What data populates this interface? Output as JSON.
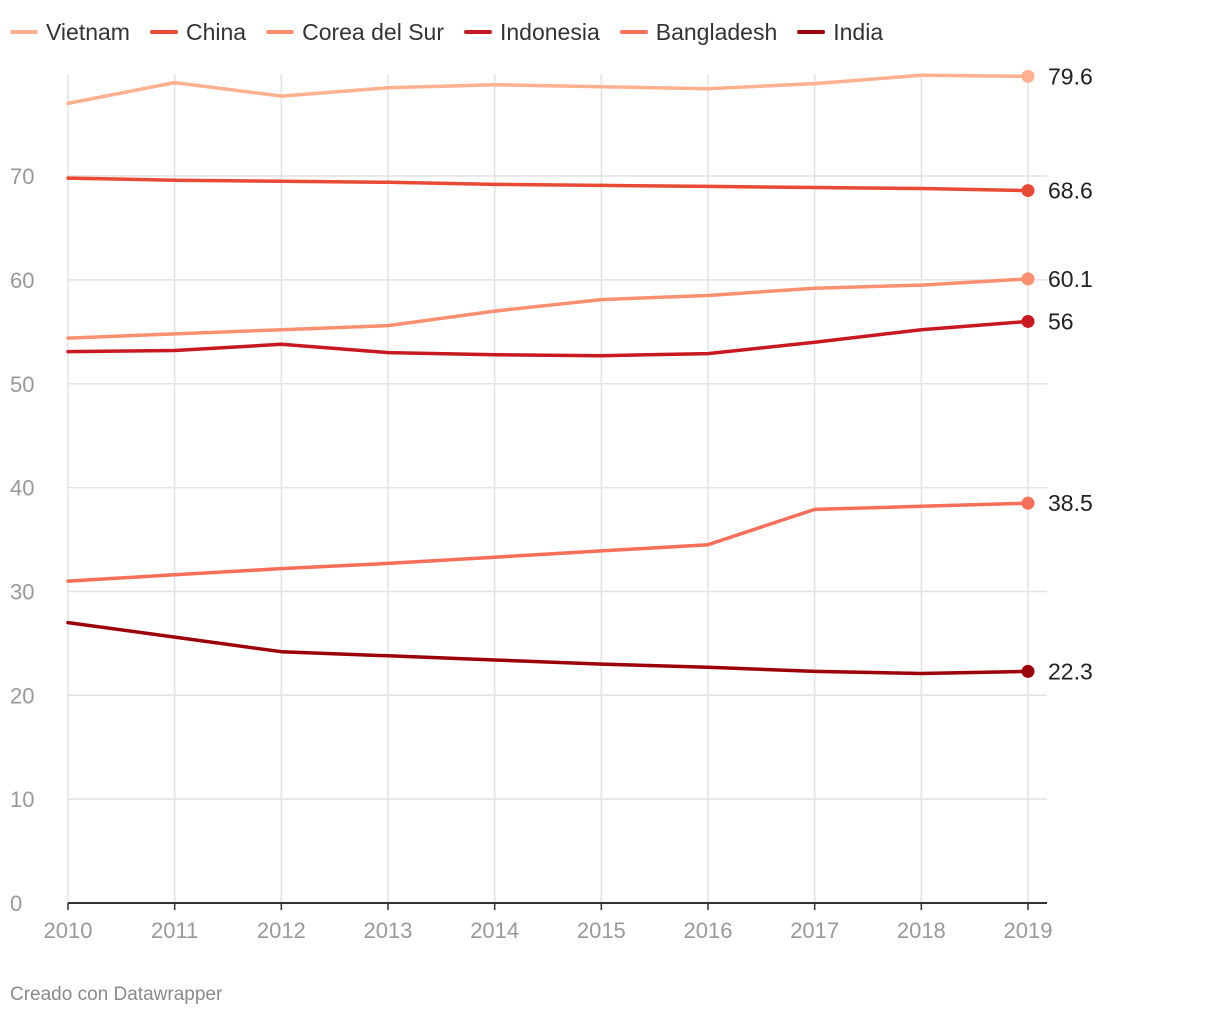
{
  "legend": [
    {
      "label": "Vietnam",
      "color": "#ffb08f"
    },
    {
      "label": "China",
      "color": "#e84a35"
    },
    {
      "label": "Corea del Sur",
      "color": "#fb9071"
    },
    {
      "label": "Indonesia",
      "color": "#c7191f"
    },
    {
      "label": "Bangladesh",
      "color": "#f76e59"
    },
    {
      "label": "India",
      "color": "#9c0008"
    }
  ],
  "footer": "Creado con Datawrapper",
  "chart_data": {
    "type": "line",
    "x": [
      "2010",
      "2011",
      "2012",
      "2013",
      "2014",
      "2015",
      "2016",
      "2017",
      "2018",
      "2019"
    ],
    "ylim": [
      0,
      80
    ],
    "yticks": [
      "0",
      "10",
      "20",
      "30",
      "40",
      "50",
      "60",
      "70"
    ],
    "grid": true,
    "legend_position": "top-left",
    "series": [
      {
        "name": "Vietnam",
        "color": "#ffb08f",
        "end_label": "79.6",
        "values": [
          77.0,
          79.0,
          77.7,
          78.5,
          78.8,
          78.6,
          78.4,
          78.9,
          79.7,
          79.6
        ]
      },
      {
        "name": "China",
        "color": "#e84a35",
        "end_label": "68.6",
        "values": [
          69.8,
          69.6,
          69.5,
          69.4,
          69.2,
          69.1,
          69.0,
          68.9,
          68.8,
          68.6
        ]
      },
      {
        "name": "Corea del Sur",
        "color": "#fb9071",
        "end_label": "60.1",
        "values": [
          54.4,
          54.8,
          55.2,
          55.6,
          57.0,
          58.1,
          58.5,
          59.2,
          59.5,
          60.1
        ]
      },
      {
        "name": "Indonesia",
        "color": "#c7191f",
        "end_label": "56",
        "values": [
          53.1,
          53.2,
          53.8,
          53.0,
          52.8,
          52.7,
          52.9,
          54.0,
          55.2,
          56.0
        ]
      },
      {
        "name": "Bangladesh",
        "color": "#f76e59",
        "end_label": "38.5",
        "values": [
          31.0,
          31.6,
          32.2,
          32.7,
          33.3,
          33.9,
          34.5,
          37.9,
          38.2,
          38.5
        ]
      },
      {
        "name": "India",
        "color": "#9c0008",
        "end_label": "22.3",
        "values": [
          27.0,
          25.6,
          24.2,
          23.8,
          23.4,
          23.0,
          22.7,
          22.3,
          22.1,
          22.3
        ]
      }
    ]
  }
}
